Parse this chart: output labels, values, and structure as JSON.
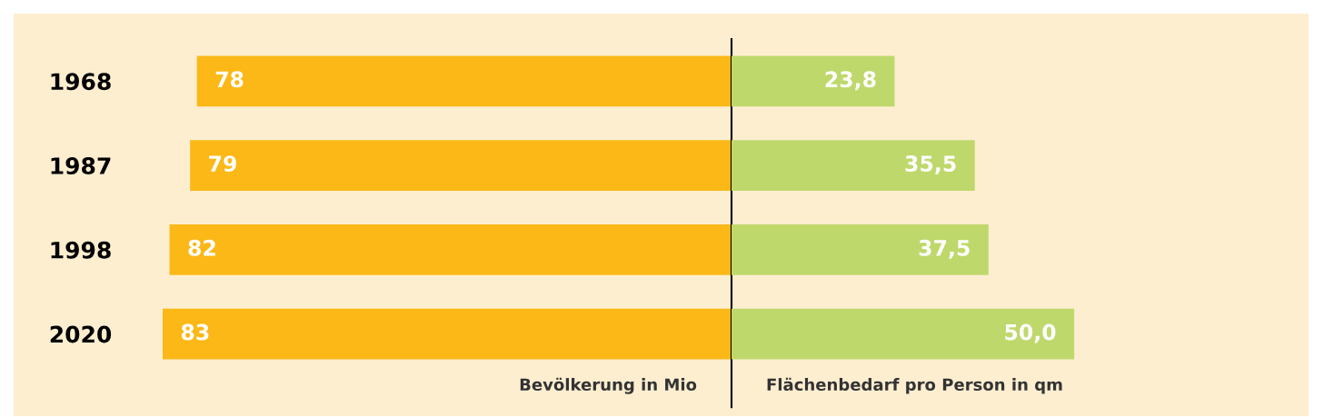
{
  "chart_data": [
    {
      "type": "bar",
      "orientation": "horizontal",
      "categories": [
        "1968",
        "1987",
        "1998",
        "2020"
      ],
      "values": [
        78,
        79,
        82,
        83
      ],
      "color": "#fbb817",
      "xlabel": "Bevölkerung in Mio",
      "data_labels": true,
      "tick_labels": "y",
      "grid": false,
      "legend": false
    },
    {
      "type": "bar",
      "orientation": "horizontal",
      "categories": [
        "1968",
        "1987",
        "1998",
        "2020"
      ],
      "values": [
        23.8,
        35.5,
        37.5,
        50.0
      ],
      "value_labels": [
        "23,8",
        "35,5",
        "37,5",
        "50,0"
      ],
      "color": "#bfd86c",
      "xlabel": "Flächenbedarf pro Person in qm",
      "tick_labels": false,
      "grid": false,
      "legend": false
    }
  ]
}
